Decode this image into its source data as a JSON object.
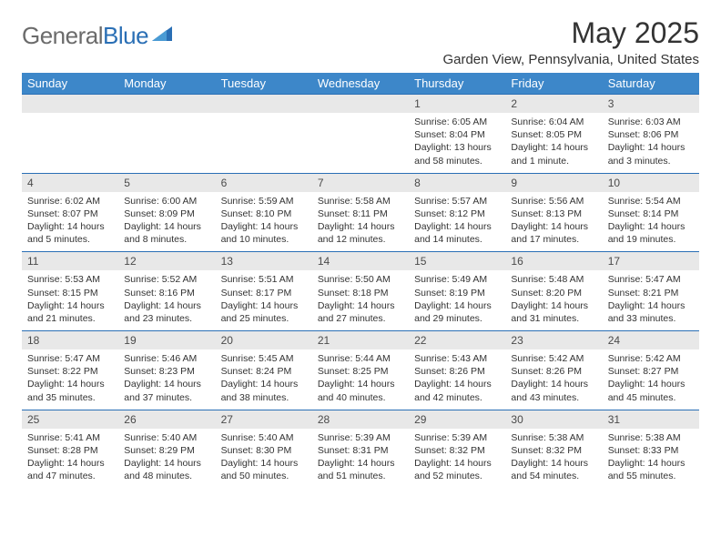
{
  "brand": {
    "name_part1": "General",
    "name_part2": "Blue"
  },
  "title": "May 2025",
  "location": "Garden View, Pennsylvania, United States",
  "colors": {
    "header_bg": "#3d87c9",
    "header_text": "#ffffff",
    "date_bg": "#e8e8e8",
    "date_border": "#2a6fb5",
    "body_text": "#333333",
    "logo_gray": "#6b6b6b",
    "logo_blue": "#2a6fb5"
  },
  "weekdays": [
    "Sunday",
    "Monday",
    "Tuesday",
    "Wednesday",
    "Thursday",
    "Friday",
    "Saturday"
  ],
  "weeks": [
    {
      "dates": [
        "",
        "",
        "",
        "",
        "1",
        "2",
        "3"
      ],
      "cells": [
        null,
        null,
        null,
        null,
        {
          "sunrise": "Sunrise: 6:05 AM",
          "sunset": "Sunset: 8:04 PM",
          "daylight1": "Daylight: 13 hours",
          "daylight2": "and 58 minutes."
        },
        {
          "sunrise": "Sunrise: 6:04 AM",
          "sunset": "Sunset: 8:05 PM",
          "daylight1": "Daylight: 14 hours",
          "daylight2": "and 1 minute."
        },
        {
          "sunrise": "Sunrise: 6:03 AM",
          "sunset": "Sunset: 8:06 PM",
          "daylight1": "Daylight: 14 hours",
          "daylight2": "and 3 minutes."
        }
      ]
    },
    {
      "dates": [
        "4",
        "5",
        "6",
        "7",
        "8",
        "9",
        "10"
      ],
      "cells": [
        {
          "sunrise": "Sunrise: 6:02 AM",
          "sunset": "Sunset: 8:07 PM",
          "daylight1": "Daylight: 14 hours",
          "daylight2": "and 5 minutes."
        },
        {
          "sunrise": "Sunrise: 6:00 AM",
          "sunset": "Sunset: 8:09 PM",
          "daylight1": "Daylight: 14 hours",
          "daylight2": "and 8 minutes."
        },
        {
          "sunrise": "Sunrise: 5:59 AM",
          "sunset": "Sunset: 8:10 PM",
          "daylight1": "Daylight: 14 hours",
          "daylight2": "and 10 minutes."
        },
        {
          "sunrise": "Sunrise: 5:58 AM",
          "sunset": "Sunset: 8:11 PM",
          "daylight1": "Daylight: 14 hours",
          "daylight2": "and 12 minutes."
        },
        {
          "sunrise": "Sunrise: 5:57 AM",
          "sunset": "Sunset: 8:12 PM",
          "daylight1": "Daylight: 14 hours",
          "daylight2": "and 14 minutes."
        },
        {
          "sunrise": "Sunrise: 5:56 AM",
          "sunset": "Sunset: 8:13 PM",
          "daylight1": "Daylight: 14 hours",
          "daylight2": "and 17 minutes."
        },
        {
          "sunrise": "Sunrise: 5:54 AM",
          "sunset": "Sunset: 8:14 PM",
          "daylight1": "Daylight: 14 hours",
          "daylight2": "and 19 minutes."
        }
      ]
    },
    {
      "dates": [
        "11",
        "12",
        "13",
        "14",
        "15",
        "16",
        "17"
      ],
      "cells": [
        {
          "sunrise": "Sunrise: 5:53 AM",
          "sunset": "Sunset: 8:15 PM",
          "daylight1": "Daylight: 14 hours",
          "daylight2": "and 21 minutes."
        },
        {
          "sunrise": "Sunrise: 5:52 AM",
          "sunset": "Sunset: 8:16 PM",
          "daylight1": "Daylight: 14 hours",
          "daylight2": "and 23 minutes."
        },
        {
          "sunrise": "Sunrise: 5:51 AM",
          "sunset": "Sunset: 8:17 PM",
          "daylight1": "Daylight: 14 hours",
          "daylight2": "and 25 minutes."
        },
        {
          "sunrise": "Sunrise: 5:50 AM",
          "sunset": "Sunset: 8:18 PM",
          "daylight1": "Daylight: 14 hours",
          "daylight2": "and 27 minutes."
        },
        {
          "sunrise": "Sunrise: 5:49 AM",
          "sunset": "Sunset: 8:19 PM",
          "daylight1": "Daylight: 14 hours",
          "daylight2": "and 29 minutes."
        },
        {
          "sunrise": "Sunrise: 5:48 AM",
          "sunset": "Sunset: 8:20 PM",
          "daylight1": "Daylight: 14 hours",
          "daylight2": "and 31 minutes."
        },
        {
          "sunrise": "Sunrise: 5:47 AM",
          "sunset": "Sunset: 8:21 PM",
          "daylight1": "Daylight: 14 hours",
          "daylight2": "and 33 minutes."
        }
      ]
    },
    {
      "dates": [
        "18",
        "19",
        "20",
        "21",
        "22",
        "23",
        "24"
      ],
      "cells": [
        {
          "sunrise": "Sunrise: 5:47 AM",
          "sunset": "Sunset: 8:22 PM",
          "daylight1": "Daylight: 14 hours",
          "daylight2": "and 35 minutes."
        },
        {
          "sunrise": "Sunrise: 5:46 AM",
          "sunset": "Sunset: 8:23 PM",
          "daylight1": "Daylight: 14 hours",
          "daylight2": "and 37 minutes."
        },
        {
          "sunrise": "Sunrise: 5:45 AM",
          "sunset": "Sunset: 8:24 PM",
          "daylight1": "Daylight: 14 hours",
          "daylight2": "and 38 minutes."
        },
        {
          "sunrise": "Sunrise: 5:44 AM",
          "sunset": "Sunset: 8:25 PM",
          "daylight1": "Daylight: 14 hours",
          "daylight2": "and 40 minutes."
        },
        {
          "sunrise": "Sunrise: 5:43 AM",
          "sunset": "Sunset: 8:26 PM",
          "daylight1": "Daylight: 14 hours",
          "daylight2": "and 42 minutes."
        },
        {
          "sunrise": "Sunrise: 5:42 AM",
          "sunset": "Sunset: 8:26 PM",
          "daylight1": "Daylight: 14 hours",
          "daylight2": "and 43 minutes."
        },
        {
          "sunrise": "Sunrise: 5:42 AM",
          "sunset": "Sunset: 8:27 PM",
          "daylight1": "Daylight: 14 hours",
          "daylight2": "and 45 minutes."
        }
      ]
    },
    {
      "dates": [
        "25",
        "26",
        "27",
        "28",
        "29",
        "30",
        "31"
      ],
      "cells": [
        {
          "sunrise": "Sunrise: 5:41 AM",
          "sunset": "Sunset: 8:28 PM",
          "daylight1": "Daylight: 14 hours",
          "daylight2": "and 47 minutes."
        },
        {
          "sunrise": "Sunrise: 5:40 AM",
          "sunset": "Sunset: 8:29 PM",
          "daylight1": "Daylight: 14 hours",
          "daylight2": "and 48 minutes."
        },
        {
          "sunrise": "Sunrise: 5:40 AM",
          "sunset": "Sunset: 8:30 PM",
          "daylight1": "Daylight: 14 hours",
          "daylight2": "and 50 minutes."
        },
        {
          "sunrise": "Sunrise: 5:39 AM",
          "sunset": "Sunset: 8:31 PM",
          "daylight1": "Daylight: 14 hours",
          "daylight2": "and 51 minutes."
        },
        {
          "sunrise": "Sunrise: 5:39 AM",
          "sunset": "Sunset: 8:32 PM",
          "daylight1": "Daylight: 14 hours",
          "daylight2": "and 52 minutes."
        },
        {
          "sunrise": "Sunrise: 5:38 AM",
          "sunset": "Sunset: 8:32 PM",
          "daylight1": "Daylight: 14 hours",
          "daylight2": "and 54 minutes."
        },
        {
          "sunrise": "Sunrise: 5:38 AM",
          "sunset": "Sunset: 8:33 PM",
          "daylight1": "Daylight: 14 hours",
          "daylight2": "and 55 minutes."
        }
      ]
    }
  ]
}
